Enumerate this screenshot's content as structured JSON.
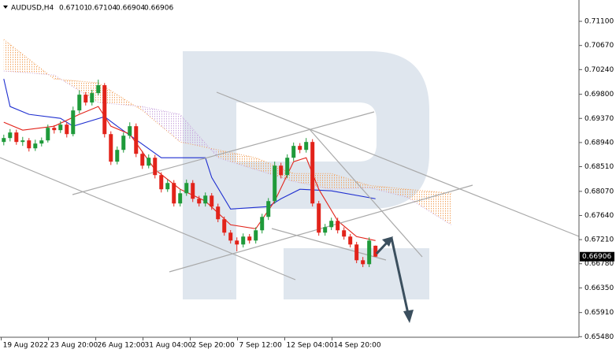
{
  "chart_data": {
    "type": "candlestick",
    "symbol": "AUDUSD,H4",
    "ohlc_header": [
      0.67101,
      0.67104,
      0.66904,
      0.66906
    ],
    "up_color": "#1f9a3a",
    "down_color": "#e2231a",
    "open": [
      0.6895,
      0.6902,
      0.69119,
      0.6895,
      0.68978,
      0.68837,
      0.68922,
      0.68978,
      0.69203,
      0.69161,
      0.69259,
      0.6909,
      0.69512,
      0.69793,
      0.69653,
      0.69821,
      0.69962,
      0.6909,
      0.68599,
      0.68809,
      0.69062,
      0.69231,
      0.68739,
      0.68528,
      0.68669,
      0.6836,
      0.68107,
      0.68219,
      0.67854,
      0.68036,
      0.68219,
      0.67938,
      0.67854,
      0.67994,
      0.67798,
      0.67573,
      0.67334,
      0.67193,
      0.67123,
      0.67264,
      0.67193,
      0.67376,
      0.67615,
      0.67896,
      0.68528,
      0.6836,
      0.68669,
      0.6888,
      0.68809,
      0.6895,
      0.67854,
      0.67334,
      0.67432,
      0.67545,
      0.67376,
      0.67264,
      0.67123,
      0.66842,
      0.66772,
      0.67101
    ],
    "high": [
      0.6908,
      0.6918,
      0.6917,
      0.6904,
      0.6902,
      0.6899,
      0.6903,
      0.6926,
      0.6925,
      0.6932,
      0.693,
      0.6958,
      0.6987,
      0.6984,
      0.6988,
      0.7006,
      0.7,
      0.6914,
      0.6887,
      0.6912,
      0.693,
      0.6928,
      0.6879,
      0.6873,
      0.6872,
      0.6841,
      0.6828,
      0.6827,
      0.681,
      0.6828,
      0.6827,
      0.6799,
      0.6805,
      0.6804,
      0.6785,
      0.6762,
      0.6738,
      0.6725,
      0.6732,
      0.6731,
      0.6743,
      0.6767,
      0.6795,
      0.686,
      0.6858,
      0.6873,
      0.6894,
      0.6893,
      0.6902,
      0.69,
      0.679,
      0.6749,
      0.676,
      0.676,
      0.6743,
      0.6731,
      0.6717,
      0.669,
      0.6725,
      0.67104
    ],
    "low": [
      0.6889,
      0.6896,
      0.689,
      0.6888,
      0.6878,
      0.6879,
      0.6887,
      0.6894,
      0.691,
      0.6911,
      0.6903,
      0.6905,
      0.6946,
      0.696,
      0.696,
      0.6978,
      0.6903,
      0.6854,
      0.6855,
      0.6876,
      0.6901,
      0.6868,
      0.6847,
      0.6848,
      0.683,
      0.6805,
      0.6806,
      0.678,
      0.678,
      0.6799,
      0.6788,
      0.678,
      0.678,
      0.6774,
      0.6752,
      0.6728,
      0.6714,
      0.67,
      0.6707,
      0.6714,
      0.6714,
      0.6732,
      0.6756,
      0.6785,
      0.683,
      0.6831,
      0.6861,
      0.6875,
      0.6876,
      0.678,
      0.6728,
      0.6728,
      0.6738,
      0.6732,
      0.6721,
      0.6707,
      0.6679,
      0.6672,
      0.6672,
      0.66904
    ],
    "close": [
      0.6902,
      0.69119,
      0.6895,
      0.68978,
      0.68837,
      0.68922,
      0.68978,
      0.69203,
      0.69161,
      0.69259,
      0.6909,
      0.69512,
      0.69793,
      0.69653,
      0.69821,
      0.69962,
      0.6909,
      0.68599,
      0.68809,
      0.69062,
      0.69231,
      0.68739,
      0.68528,
      0.68669,
      0.6836,
      0.68107,
      0.68219,
      0.67854,
      0.68036,
      0.68219,
      0.67938,
      0.67854,
      0.67994,
      0.67798,
      0.67573,
      0.67334,
      0.67193,
      0.67123,
      0.67264,
      0.67193,
      0.67376,
      0.67615,
      0.67896,
      0.68528,
      0.6836,
      0.68669,
      0.6888,
      0.68809,
      0.6895,
      0.67854,
      0.67334,
      0.67432,
      0.67545,
      0.67376,
      0.67264,
      0.67123,
      0.66842,
      0.66772,
      0.67193,
      0.66906
    ],
    "tenkan": {
      "color": "#e2231a",
      "x": [
        0,
        3,
        8,
        12,
        15,
        17,
        20,
        24,
        28,
        32,
        36,
        40,
        43,
        46,
        48,
        50,
        53,
        56,
        59
      ],
      "values": [
        0.69302,
        0.69161,
        0.69231,
        0.69442,
        0.69582,
        0.69231,
        0.6909,
        0.68458,
        0.68107,
        0.67896,
        0.67474,
        0.67404,
        0.67896,
        0.68599,
        0.68669,
        0.68107,
        0.67545,
        0.67264,
        0.67193
      ]
    },
    "kijun": {
      "color": "#1f2fd0",
      "x": [
        0,
        1,
        4,
        9,
        11,
        16,
        18,
        25,
        32,
        33,
        36,
        42,
        44,
        47,
        52,
        59
      ],
      "values": [
        0.70074,
        0.69582,
        0.69442,
        0.69371,
        0.69231,
        0.694,
        0.69231,
        0.68669,
        0.68669,
        0.68318,
        0.67755,
        0.67798,
        0.67938,
        0.68107,
        0.68079,
        0.67938
      ]
    },
    "cloud": {
      "color_up": "#f2a35e",
      "color_down": "#c9a6de",
      "x": [
        0,
        8,
        15,
        22,
        28,
        34,
        40,
        46,
        52,
        58,
        64,
        71
      ],
      "span_a": [
        0.70777,
        0.70074,
        0.70004,
        0.69512,
        0.6895,
        0.68809,
        0.68669,
        0.68388,
        0.68388,
        0.68177,
        0.68107,
        0.68036
      ],
      "span_b": [
        0.70215,
        0.70144,
        0.69653,
        0.69582,
        0.69442,
        0.68669,
        0.68458,
        0.68247,
        0.68107,
        0.68135,
        0.67966,
        0.67474
      ]
    },
    "last_price": 0.66906,
    "ylim": [
      0.6547,
      0.7148
    ],
    "yticks": [
      {
        "value": 0.711,
        "label": "0.71100"
      },
      {
        "value": 0.7067,
        "label": "0.70670"
      },
      {
        "value": 0.7024,
        "label": "0.70240"
      },
      {
        "value": 0.698,
        "label": "0.69800"
      },
      {
        "value": 0.6937,
        "label": "0.69370"
      },
      {
        "value": 0.6894,
        "label": "0.68940"
      },
      {
        "value": 0.6851,
        "label": "0.68510"
      },
      {
        "value": 0.6807,
        "label": "0.68070"
      },
      {
        "value": 0.6764,
        "label": "0.67640"
      },
      {
        "value": 0.6721,
        "label": "0.67210"
      },
      {
        "value": 0.6678,
        "label": "0.66780"
      },
      {
        "value": 0.6635,
        "label": "0.66350"
      },
      {
        "value": 0.6591,
        "label": "0.65910"
      },
      {
        "value": 0.6548,
        "label": "0.65480"
      }
    ],
    "xlim": [
      -0.6,
      91.3
    ],
    "xticks": [
      {
        "value": -0.4,
        "label": "19 Aug 2022"
      },
      {
        "value": 7.1,
        "label": "23 Aug 20:00"
      },
      {
        "value": 14.6,
        "label": "26 Aug 12:00"
      },
      {
        "value": 22.1,
        "label": "31 Aug 04:00"
      },
      {
        "value": 29.6,
        "label": "2 Sep 20:00"
      },
      {
        "value": 37.1,
        "label": "7 Sep 12:00"
      },
      {
        "value": 44.6,
        "label": "12 Sep 04:00"
      },
      {
        "value": 52.1,
        "label": "14 Sep 20:00"
      }
    ]
  }
}
